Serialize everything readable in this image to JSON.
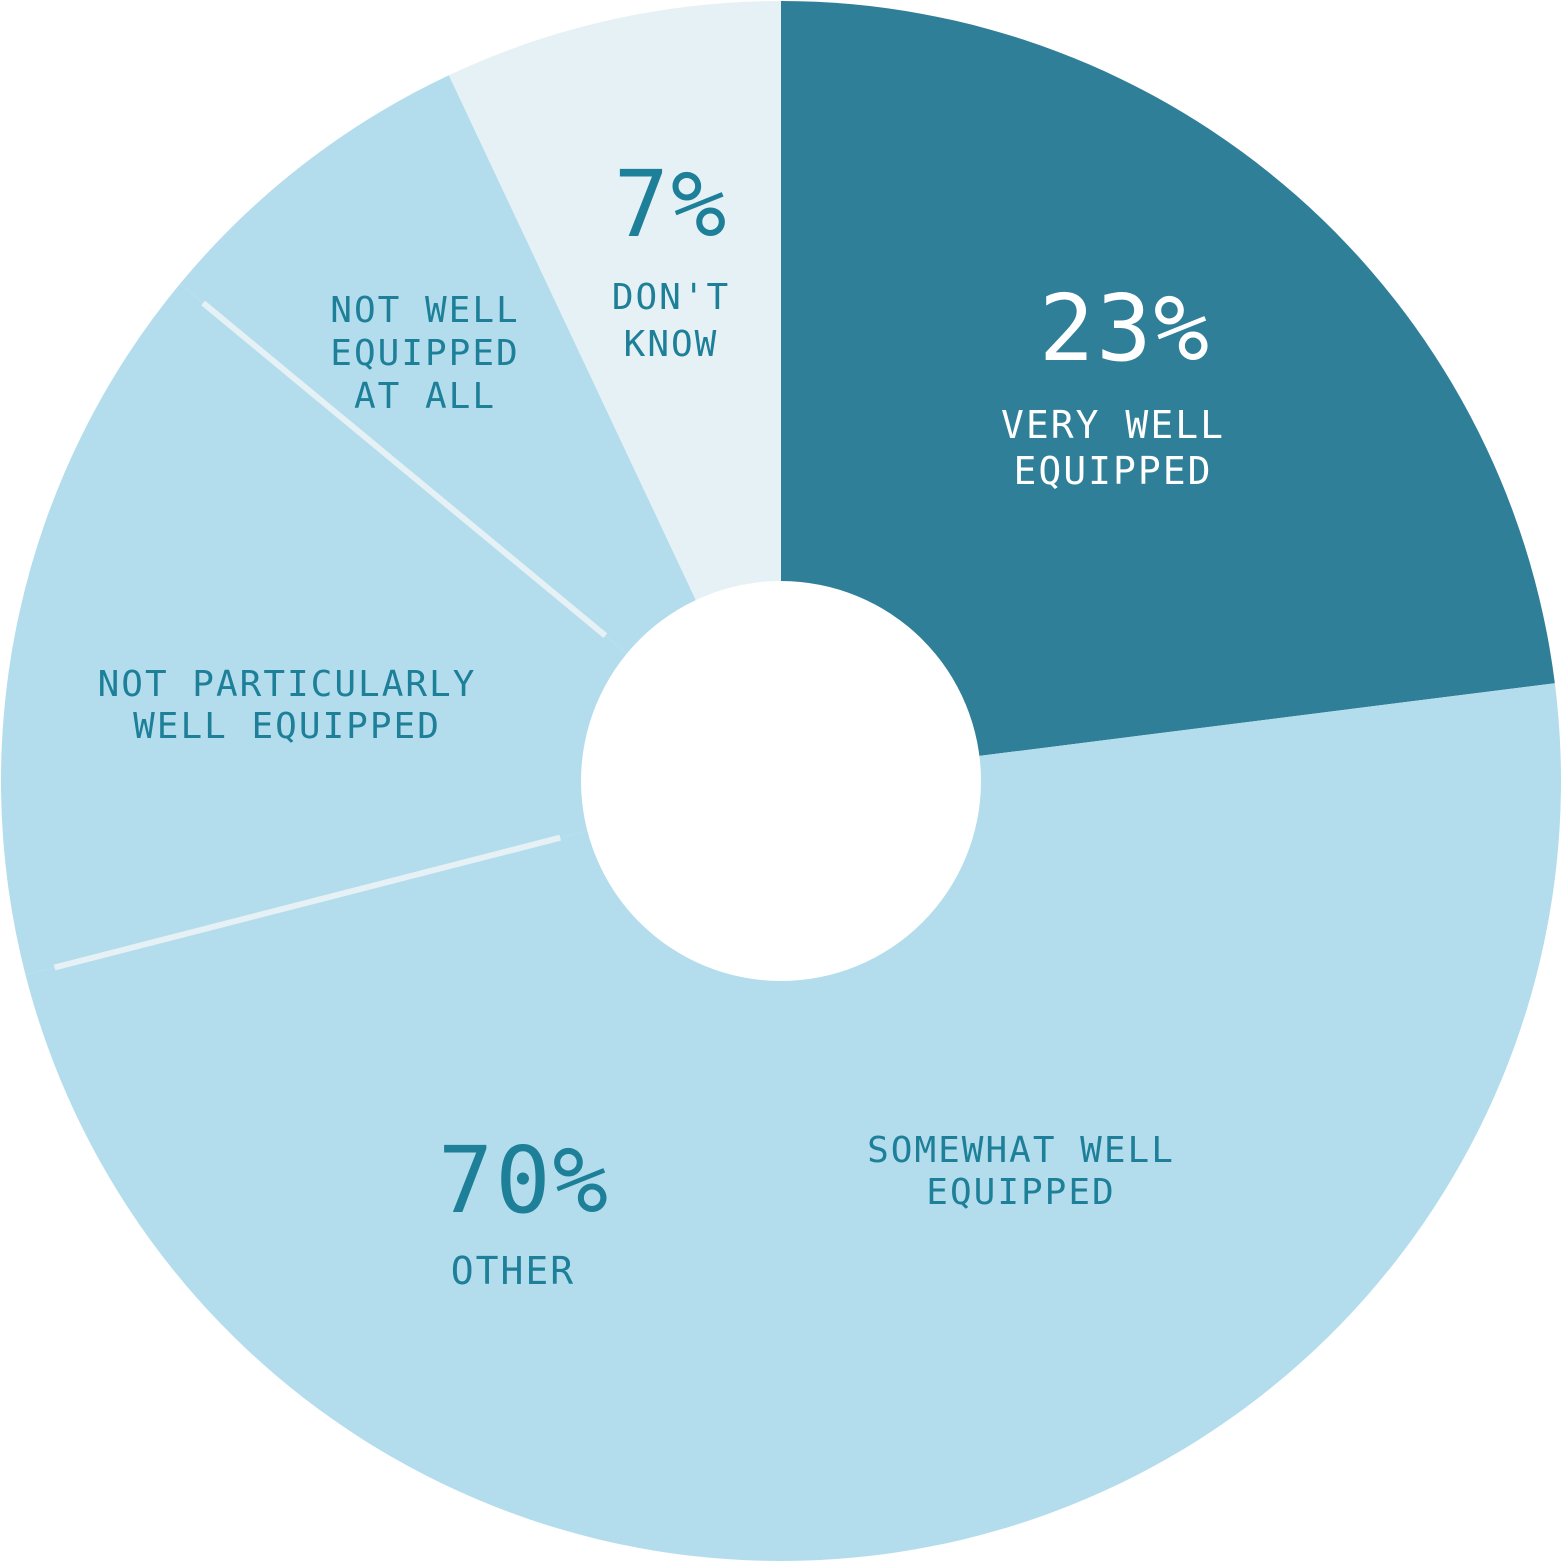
{
  "chart_data": {
    "type": "pie",
    "donut": true,
    "start_angle_deg": 0,
    "direction": "clockwise",
    "slices": [
      {
        "name": "VERY WELL EQUIPPED",
        "value": 23,
        "color": "#2f7f99"
      },
      {
        "name": "SOMEWHAT WELL EQUIPPED",
        "value": 48,
        "color": "#b3ddec"
      },
      {
        "name": "NOT PARTICULARLY WELL EQUIPPED",
        "value": 15,
        "color": "#b3ddec"
      },
      {
        "name": "NOT WELL EQUIPPED AT ALL",
        "value": 7,
        "color": "#b3ddec"
      },
      {
        "name": "DON'T KNOW",
        "value": 7,
        "color": "#e6f1f5"
      }
    ],
    "group": {
      "name": "OTHER",
      "value": 70,
      "members": [
        1,
        2,
        3
      ]
    },
    "labels": {
      "very_well": {
        "pct": "23%",
        "line1": "VERY WELL",
        "line2": "EQUIPPED"
      },
      "dont_know": {
        "pct": "7%",
        "line1": "DON'T",
        "line2": "KNOW"
      },
      "not_well": {
        "line1": "NOT WELL",
        "line2": "EQUIPPED",
        "line3": "AT ALL"
      },
      "not_particularly": {
        "line1": "NOT PARTICULARLY",
        "line2": "WELL EQUIPPED"
      },
      "somewhat": {
        "line1": "SOMEWHAT WELL",
        "line2": "EQUIPPED"
      },
      "other": {
        "pct": "70%",
        "line1": "OTHER"
      }
    },
    "colors": {
      "label_dark": "#1e7f99",
      "label_light": "#ffffff",
      "divider": "#e6f1f5"
    }
  }
}
